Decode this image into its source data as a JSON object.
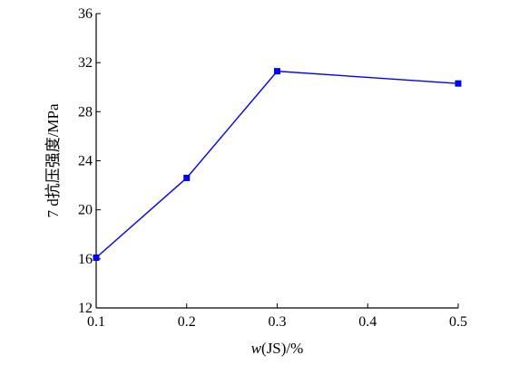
{
  "chart_data": {
    "type": "line",
    "x": [
      0.1,
      0.2,
      0.3,
      0.5
    ],
    "series": [
      {
        "values": [
          16.1,
          22.6,
          31.3,
          30.3
        ]
      }
    ],
    "xlabel_italic": "w",
    "xlabel_rest": "(JS)/%",
    "ylabel": "7 d抗压强度/MPa",
    "xlim": [
      0.1,
      0.5
    ],
    "ylim": [
      12,
      36
    ],
    "x_ticks": [
      0.1,
      0.2,
      0.3,
      0.4,
      0.5
    ],
    "x_tick_labels": [
      "0.1",
      "0.2",
      "0.3",
      "0.4",
      "0.5"
    ],
    "y_ticks": [
      12,
      16,
      20,
      24,
      28,
      32,
      36
    ],
    "y_tick_labels": [
      "12",
      "16",
      "20",
      "24",
      "28",
      "32",
      "36"
    ],
    "grid": false,
    "line_color": "#0000ff",
    "marker_color": "#0000ff",
    "marker": "square"
  }
}
